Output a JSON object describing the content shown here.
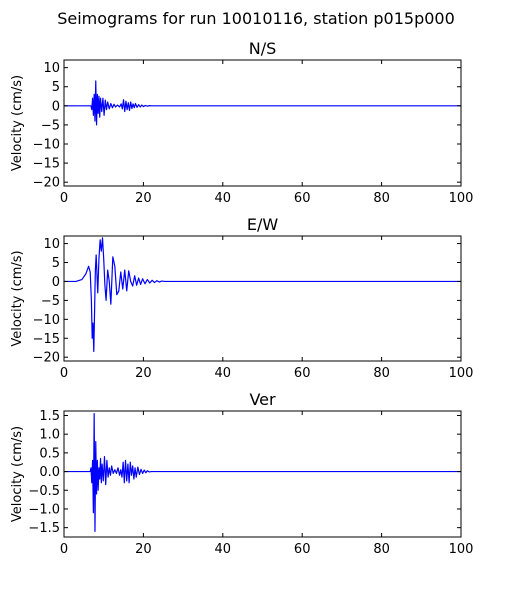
{
  "figure": {
    "title": "Seimograms for run 10010116, station p015p000"
  },
  "style": {
    "line_color": "#0000ff",
    "axes_color": "#000000",
    "background": "#ffffff"
  },
  "chart_data": [
    {
      "type": "line",
      "title": "N/S",
      "xlabel": "",
      "ylabel": "Velocity (cm/s)",
      "xlim": [
        0,
        100
      ],
      "ylim": [
        -21,
        12
      ],
      "xticks": [
        0,
        20,
        40,
        60,
        80,
        100
      ],
      "yticks": [
        10,
        5,
        0,
        -5,
        -10,
        -15,
        -20
      ],
      "series": [
        {
          "x": [
            0,
            6.8,
            7.0,
            7.2,
            7.4,
            7.6,
            7.8,
            8.0,
            8.2,
            8.4,
            8.6,
            8.8,
            9.0,
            9.2,
            9.5,
            9.8,
            10.1,
            10.4,
            10.7,
            11.0,
            11.4,
            11.8,
            12.2,
            12.6,
            13.0,
            13.5,
            14.0,
            14.4,
            14.7,
            15.0,
            15.3,
            15.6,
            15.9,
            16.2,
            16.5,
            16.8,
            17.1,
            17.4,
            17.7,
            18.0,
            18.4,
            18.8,
            19.2,
            19.6,
            20.0,
            20.5,
            21.0,
            21.5,
            22.0,
            100
          ],
          "y": [
            0,
            0,
            -1,
            2,
            -2.5,
            3,
            -4,
            6.5,
            -5,
            3,
            -2,
            2.5,
            -3,
            2,
            -1.5,
            2,
            -2.5,
            1.5,
            -1,
            1,
            -0.8,
            0.6,
            -0.5,
            0.4,
            -0.3,
            0.2,
            -0.3,
            0.5,
            -0.8,
            1.6,
            -1.5,
            1.2,
            -1,
            0.8,
            -1.2,
            1,
            -0.7,
            0.5,
            -0.5,
            0.6,
            -0.4,
            0.3,
            -0.3,
            0.2,
            -0.2,
            0.1,
            -0.1,
            0.05,
            0,
            0
          ]
        }
      ]
    },
    {
      "type": "line",
      "title": "E/W",
      "xlabel": "",
      "ylabel": "Velocity (cm/s)",
      "xlim": [
        0,
        100
      ],
      "ylim": [
        -21,
        12
      ],
      "xticks": [
        0,
        20,
        40,
        60,
        80,
        100
      ],
      "yticks": [
        10,
        5,
        0,
        -5,
        -10,
        -15,
        -20
      ],
      "series": [
        {
          "x": [
            0,
            3.0,
            4.5,
            5.5,
            6.2,
            6.6,
            6.9,
            7.1,
            7.3,
            7.5,
            7.7,
            7.9,
            8.1,
            8.3,
            8.5,
            8.8,
            9.1,
            9.4,
            9.7,
            10.0,
            10.3,
            10.6,
            11.0,
            11.4,
            11.8,
            12.3,
            12.8,
            13.3,
            13.8,
            14.3,
            14.8,
            15.3,
            15.8,
            16.3,
            16.8,
            17.3,
            17.8,
            18.3,
            18.8,
            19.3,
            19.8,
            20.4,
            21.0,
            21.6,
            22.2,
            22.8,
            23.4,
            24.0,
            24.6,
            25.5,
            27.0,
            100
          ],
          "y": [
            0,
            0,
            0.5,
            2,
            4,
            2.5,
            -5,
            -15,
            -11,
            -18.5,
            -8,
            3,
            7,
            2,
            -3,
            6,
            11,
            8,
            11.5,
            6,
            -1,
            -5,
            3,
            0,
            -6,
            6.5,
            4,
            -3.5,
            -2.5,
            2.5,
            -2,
            3,
            -2.5,
            2.8,
            0,
            -1.2,
            1.5,
            -1,
            0.9,
            -0.8,
            0.7,
            -0.6,
            0.5,
            -0.4,
            0.3,
            -0.3,
            0.2,
            -0.15,
            0.1,
            0,
            0,
            0
          ]
        }
      ]
    },
    {
      "type": "line",
      "title": "Ver",
      "xlabel": "",
      "ylabel": "Velocity (cm/s)",
      "xlim": [
        0,
        100
      ],
      "ylim": [
        -1.75,
        1.62
      ],
      "xticks": [
        0,
        20,
        40,
        60,
        80,
        100
      ],
      "yticks": [
        1.5,
        1.0,
        0.5,
        0.0,
        -0.5,
        -1.0,
        -1.5
      ],
      "series": [
        {
          "x": [
            0,
            6.6,
            6.8,
            7.0,
            7.2,
            7.4,
            7.6,
            7.8,
            8.0,
            8.2,
            8.4,
            8.6,
            8.8,
            9.0,
            9.2,
            9.4,
            9.6,
            9.9,
            10.2,
            10.5,
            10.8,
            11.1,
            11.4,
            11.7,
            12.0,
            12.4,
            12.8,
            13.2,
            13.6,
            14.0,
            14.3,
            14.6,
            14.9,
            15.2,
            15.5,
            15.8,
            16.1,
            16.4,
            16.7,
            17.0,
            17.3,
            17.6,
            17.9,
            18.2,
            18.6,
            19.0,
            19.4,
            19.8,
            20.2,
            20.6,
            21.0,
            21.5,
            22.0,
            100
          ],
          "y": [
            0,
            0,
            0.1,
            -0.3,
            0.3,
            -1.1,
            1.55,
            -1.6,
            0.8,
            -0.6,
            0.3,
            -0.5,
            0.1,
            -0.2,
            0.35,
            -0.3,
            0.2,
            -0.25,
            0.4,
            -0.35,
            0.3,
            -0.15,
            0.1,
            -0.1,
            0.15,
            -0.05,
            0.05,
            -0.05,
            0.1,
            -0.1,
            0.05,
            -0.15,
            0.25,
            -0.3,
            0.3,
            -0.25,
            0.2,
            -0.3,
            0.25,
            -0.1,
            0.15,
            -0.2,
            0.1,
            -0.15,
            0.12,
            -0.08,
            0.06,
            -0.05,
            0.04,
            -0.03,
            0.02,
            -0.01,
            0,
            0
          ]
        }
      ]
    }
  ]
}
